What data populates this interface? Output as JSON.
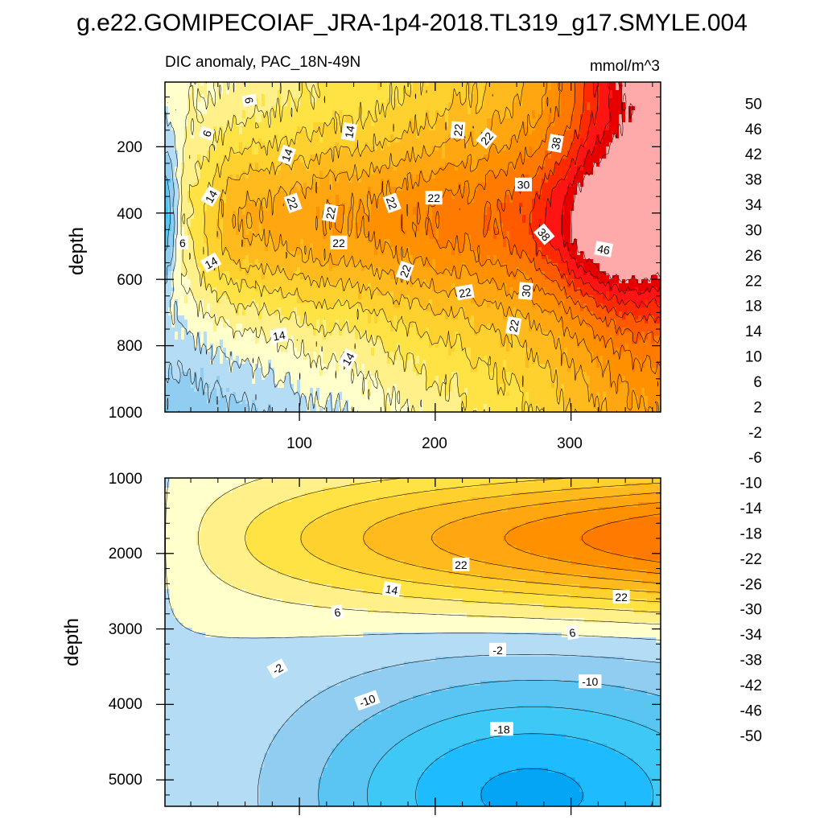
{
  "title": "g.e22.GOMIPECOIAF_JRA-1p4-2018.TL319_g17.SMYLE.004",
  "colors": {
    "levels": [
      "#8a2be2",
      "#5d20f0",
      "#0000ff",
      "#1a2ef0",
      "#3a5ee0",
      "#3c78e6",
      "#2e87ec",
      "#1a94ff",
      "#05a5f5",
      "#1ebcff",
      "#3ec8f5",
      "#5ac5f2",
      "#90cdf0",
      "#b4dcf5",
      "#ffffcc",
      "#fff08a",
      "#ffe244",
      "#ffd12e",
      "#ffbb1e",
      "#ffa611",
      "#ff9000",
      "#ff7a00",
      "#ff5a00",
      "#ff2a00",
      "#ff1414",
      "#e60000",
      "#cc0000",
      "#e05050",
      "#ffaaaa"
    ]
  },
  "colorbar": {
    "labels": [
      "50",
      "46",
      "42",
      "38",
      "34",
      "30",
      "26",
      "22",
      "18",
      "14",
      "10",
      "6",
      "2",
      "-2",
      "-6",
      "-10",
      "-14",
      "-18",
      "-22",
      "-26",
      "-30",
      "-34",
      "-38",
      "-42",
      "-46",
      "-50"
    ]
  },
  "chart_data": [
    {
      "type": "heatmap",
      "subtitle": "DIC anomaly, PAC_18N-49N",
      "units": "mmol/m^3",
      "xlabel": "",
      "ylabel": "depth",
      "x_ticks": [
        "100",
        "200",
        "300"
      ],
      "y_ticks": [
        "200",
        "400",
        "600",
        "800",
        "1000"
      ],
      "xlim": [
        1,
        366
      ],
      "ylim": [
        1000,
        5
      ],
      "contour_labels": [
        "6",
        "6",
        "6",
        "14",
        "14",
        "14",
        "14",
        "14",
        "14",
        "22",
        "22",
        "22",
        "22",
        "22",
        "22",
        "22",
        "22",
        "22",
        "22",
        "30",
        "30",
        "38",
        "38",
        "46"
      ]
    },
    {
      "type": "heatmap",
      "xlabel": "",
      "ylabel": "depth",
      "y_ticks": [
        "1000",
        "2000",
        "3000",
        "4000",
        "5000"
      ],
      "xlim": [
        1,
        366
      ],
      "ylim": [
        5350,
        1000
      ],
      "contour_labels": [
        "22",
        "22",
        "14",
        "6",
        "6",
        "-2",
        "-2",
        "-10",
        "-10",
        "-18"
      ]
    }
  ]
}
